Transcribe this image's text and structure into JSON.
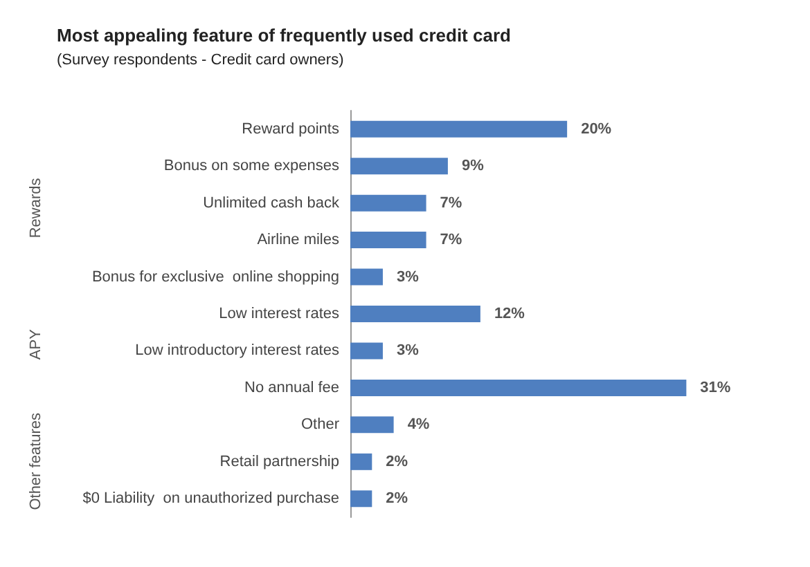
{
  "chart_data": {
    "type": "bar",
    "orientation": "horizontal",
    "title": "Most appealing feature of frequently used credit card",
    "subtitle": "(Survey respondents - Credit card owners)",
    "categories": [
      "Reward points",
      "Bonus on some expenses",
      "Unlimited cash back",
      "Airline miles",
      "Bonus for exclusive  online shopping",
      "Low interest rates",
      "Low introductory interest rates",
      "No annual fee",
      "Other",
      "Retail partnership",
      "$0 Liability  on unauthorized purchase"
    ],
    "values": [
      20,
      9,
      7,
      7,
      3,
      12,
      3,
      31,
      4,
      2,
      2
    ],
    "value_labels": [
      "20%",
      "9%",
      "7%",
      "7%",
      "3%",
      "12%",
      "3%",
      "31%",
      "4%",
      "2%",
      "2%"
    ],
    "color": "#4f7fc0",
    "annotations": [
      "Rewards",
      "APY",
      "Other features"
    ]
  }
}
